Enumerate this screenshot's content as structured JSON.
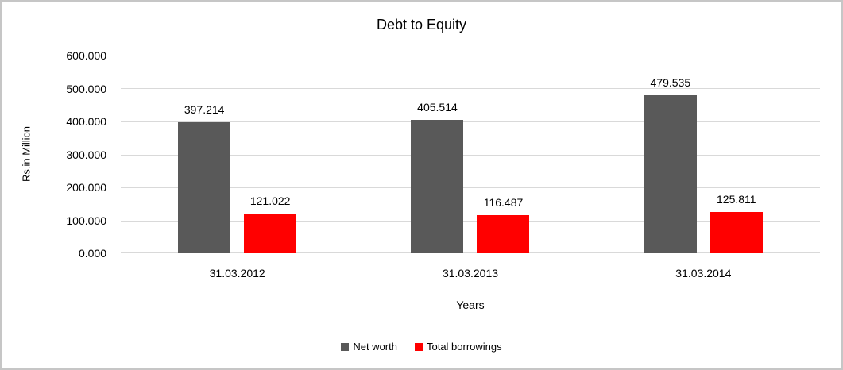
{
  "chart_data": {
    "type": "bar",
    "title": "Debt to Equity",
    "xlabel": "Years",
    "ylabel": "Rs.in Million",
    "categories": [
      "31.03.2012",
      "31.03.2013",
      "31.03.2014"
    ],
    "series": [
      {
        "name": "Net worth",
        "color": "#595959",
        "values": [
          397.214,
          405.514,
          479.535
        ]
      },
      {
        "name": "Total borrowings",
        "color": "#ff0000",
        "values": [
          121.022,
          116.487,
          125.811
        ]
      }
    ],
    "ylim": [
      0,
      600
    ],
    "y_tick_step": 100,
    "y_tick_decimals": 3,
    "value_label_decimals": 3,
    "grid": true,
    "legend_position": "bottom",
    "colors": {
      "gridline": "#d9d9d9",
      "text": "#000000",
      "background": "#ffffff"
    }
  }
}
